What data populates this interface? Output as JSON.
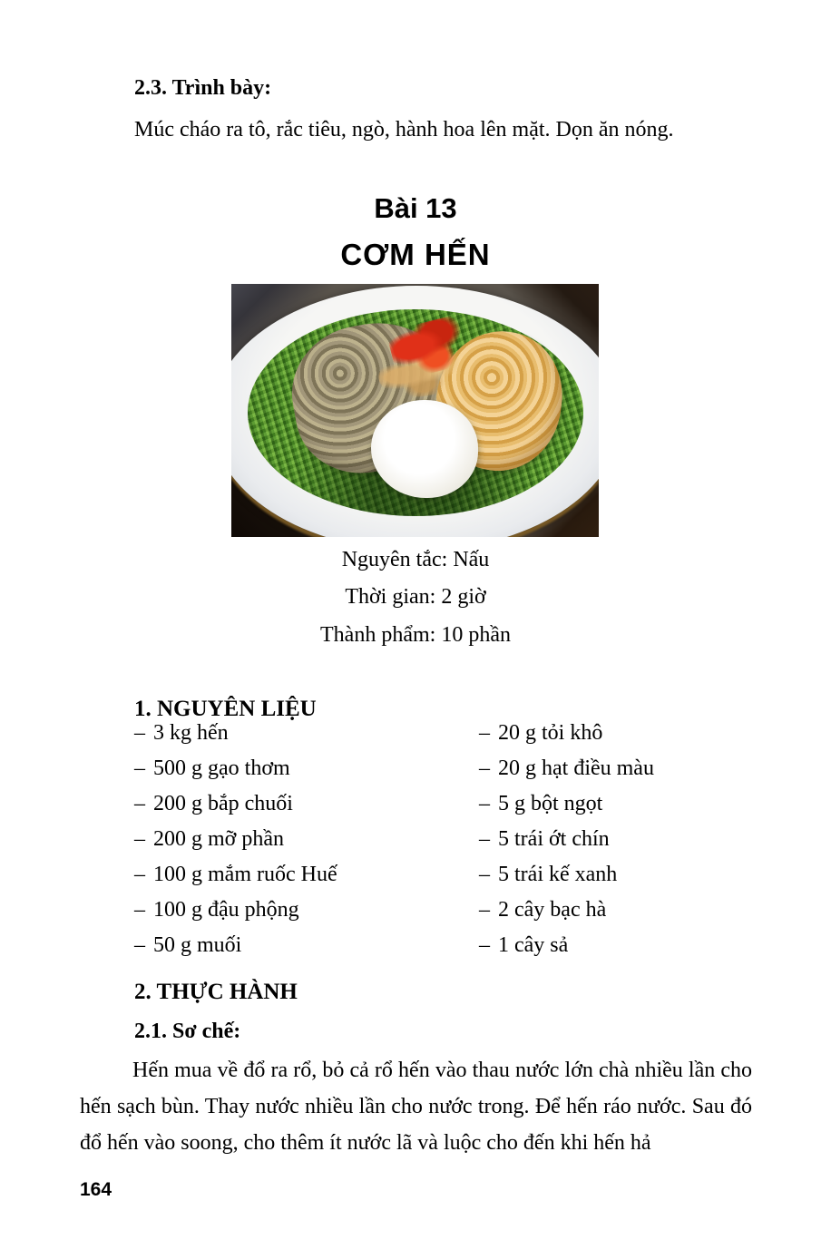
{
  "page": {
    "number": "164"
  },
  "prev_section": {
    "heading": "2.3. Trình bày:",
    "body": "Múc cháo ra tô, rắc tiêu, ngò, hành hoa lên mặt. Dọn ăn nóng."
  },
  "lesson": {
    "number_title": "Bài 13",
    "dish_title": "CƠM HẾN",
    "photo_alt": "Bowl of cơm hến with shredded greens, baby clams, rice, peanuts and chili",
    "facts": [
      "Nguyên tắc: Nấu",
      "Thời gian: 2 giờ",
      "Thành phẩm: 10 phần"
    ],
    "ingredients": {
      "heading": "1. NGUYÊN LIỆU",
      "bullet": "–",
      "left": [
        "3 kg hến",
        "500 g gạo thơm",
        "200 g bắp chuối",
        "200 g mỡ phần",
        "100 g mắm ruốc Huế",
        "100 g đậu phộng",
        "50 g muối"
      ],
      "right": [
        "20 g tỏi khô",
        "20 g hạt điều màu",
        "5 g bột ngọt",
        "5 trái ớt chín",
        "5 trái kế xanh",
        "2 cây bạc hà",
        "1 cây sả"
      ]
    },
    "practice": {
      "heading": "2. THỰC HÀNH",
      "subheading": "2.1. Sơ chế:",
      "paragraph": "Hến mua về đổ ra rổ, bỏ cả rổ hến vào thau nước lớn chà nhiều lần cho hến sạch bùn. Thay nước nhiều lần cho nước trong. Để hến ráo nước. Sau đó đổ hến vào soong, cho thêm ít nước lã và luộc cho đến khi hến hả"
    }
  },
  "colors": {
    "text": "#000000",
    "page_background": "#ffffff",
    "photo_greens": "#4c8a24",
    "photo_peanuts": "#e0b161",
    "photo_chili": "#d92c12"
  }
}
